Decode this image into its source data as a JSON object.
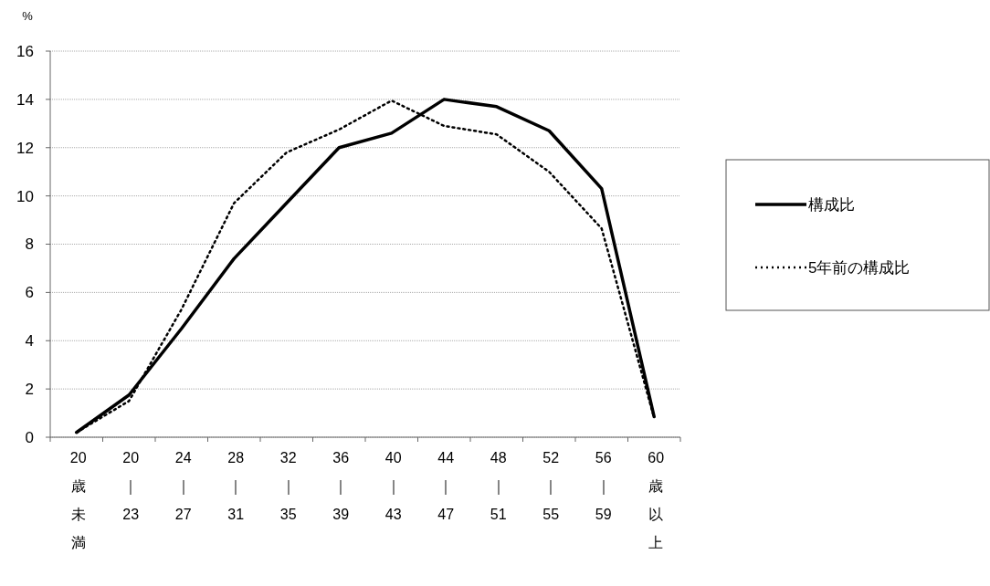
{
  "chart_data": {
    "type": "line",
    "ylabel": "%",
    "categories": [
      "20歳未満",
      "20｜23",
      "24｜27",
      "28｜31",
      "32｜35",
      "36｜39",
      "40｜43",
      "44｜47",
      "48｜51",
      "52｜55",
      "56｜59",
      "60歳以上"
    ],
    "series": [
      {
        "name": "構成比",
        "color": "#000000",
        "line_style": "solid",
        "values": [
          0.2,
          1.75,
          4.5,
          7.4,
          9.7,
          12.0,
          12.6,
          14.0,
          13.7,
          12.7,
          10.3,
          0.85
        ]
      },
      {
        "name": "5年前の構成比",
        "color": "#000000",
        "line_style": "dotted",
        "values": [
          0.2,
          1.5,
          5.3,
          9.7,
          11.8,
          12.75,
          13.95,
          12.9,
          12.55,
          11.0,
          8.65,
          0.8
        ]
      }
    ],
    "ylim": [
      0,
      16
    ],
    "yticks": [
      0,
      2,
      4,
      6,
      8,
      10,
      12,
      14,
      16
    ],
    "grid": "y",
    "legend": "right",
    "marker": "none"
  }
}
